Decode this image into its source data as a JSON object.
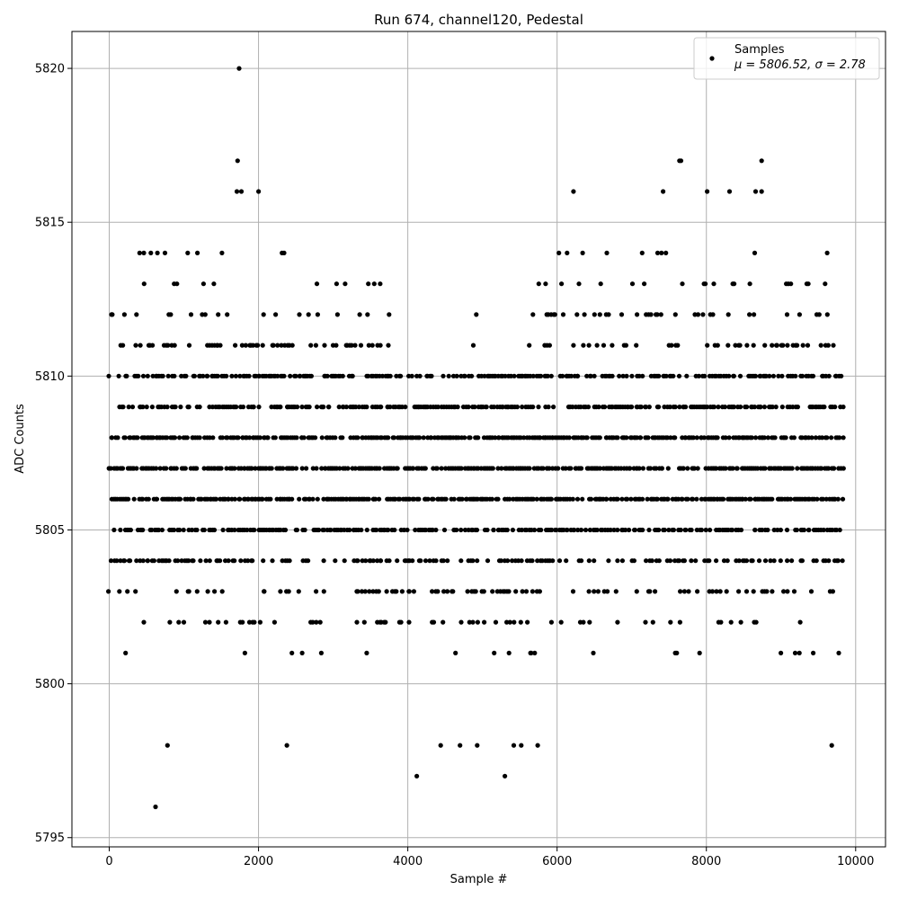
{
  "chart_data": {
    "type": "scatter",
    "title": "Run 674, channel120, Pedestal",
    "xlabel": "Sample #",
    "ylabel": "ADC Counts",
    "xlim": [
      -500,
      10400
    ],
    "ylim": [
      5794.7,
      5821.2
    ],
    "xticks": [
      0,
      2000,
      4000,
      6000,
      8000,
      10000
    ],
    "yticks": [
      5795,
      5800,
      5805,
      5810,
      5815,
      5820
    ],
    "grid": true,
    "legend_position": "top-right",
    "marker_color": "#000000",
    "series": [
      {
        "name": "Samples",
        "legend_label": "Samples",
        "legend_stats": "μ = 5806.52, σ = 2.78",
        "x_range": [
          0,
          9840
        ],
        "n_samples": 9840,
        "mean": 5806.52,
        "std": 2.78,
        "level_density": {
          "5796": 0.001,
          "5797": 0.002,
          "5798": 0.004,
          "5799": 0.008,
          "5800": 0.015,
          "5801": 0.04,
          "5802": 0.1,
          "5803": 0.2,
          "5804": 0.4,
          "5805": 0.55,
          "5806": 0.75,
          "5807": 0.75,
          "5808": 0.72,
          "5809": 0.62,
          "5810": 0.55,
          "5811": 0.3,
          "5812": 0.18,
          "5813": 0.08,
          "5814": 0.04,
          "5815": 0.015,
          "5816": 0.008,
          "5817": 0.003
        },
        "outliers": [
          {
            "x": 620,
            "y": 5796
          },
          {
            "x": 4120,
            "y": 5797
          },
          {
            "x": 5300,
            "y": 5797
          },
          {
            "x": 1740,
            "y": 5820
          },
          {
            "x": 1720,
            "y": 5817
          },
          {
            "x": 7640,
            "y": 5817
          },
          {
            "x": 7660,
            "y": 5817
          },
          {
            "x": 8740,
            "y": 5817
          },
          {
            "x": 1710,
            "y": 5816
          },
          {
            "x": 1770,
            "y": 5816
          },
          {
            "x": 2000,
            "y": 5816
          },
          {
            "x": 6220,
            "y": 5816
          },
          {
            "x": 7420,
            "y": 5816
          },
          {
            "x": 8010,
            "y": 5816
          },
          {
            "x": 8310,
            "y": 5816
          },
          {
            "x": 8660,
            "y": 5816
          },
          {
            "x": 8740,
            "y": 5816
          },
          {
            "x": 780,
            "y": 5798
          },
          {
            "x": 2380,
            "y": 5798
          },
          {
            "x": 4440,
            "y": 5798
          },
          {
            "x": 4700,
            "y": 5798
          },
          {
            "x": 4930,
            "y": 5798
          },
          {
            "x": 5420,
            "y": 5798
          },
          {
            "x": 5520,
            "y": 5798
          },
          {
            "x": 5740,
            "y": 5798
          },
          {
            "x": 9680,
            "y": 5798
          }
        ]
      }
    ]
  }
}
